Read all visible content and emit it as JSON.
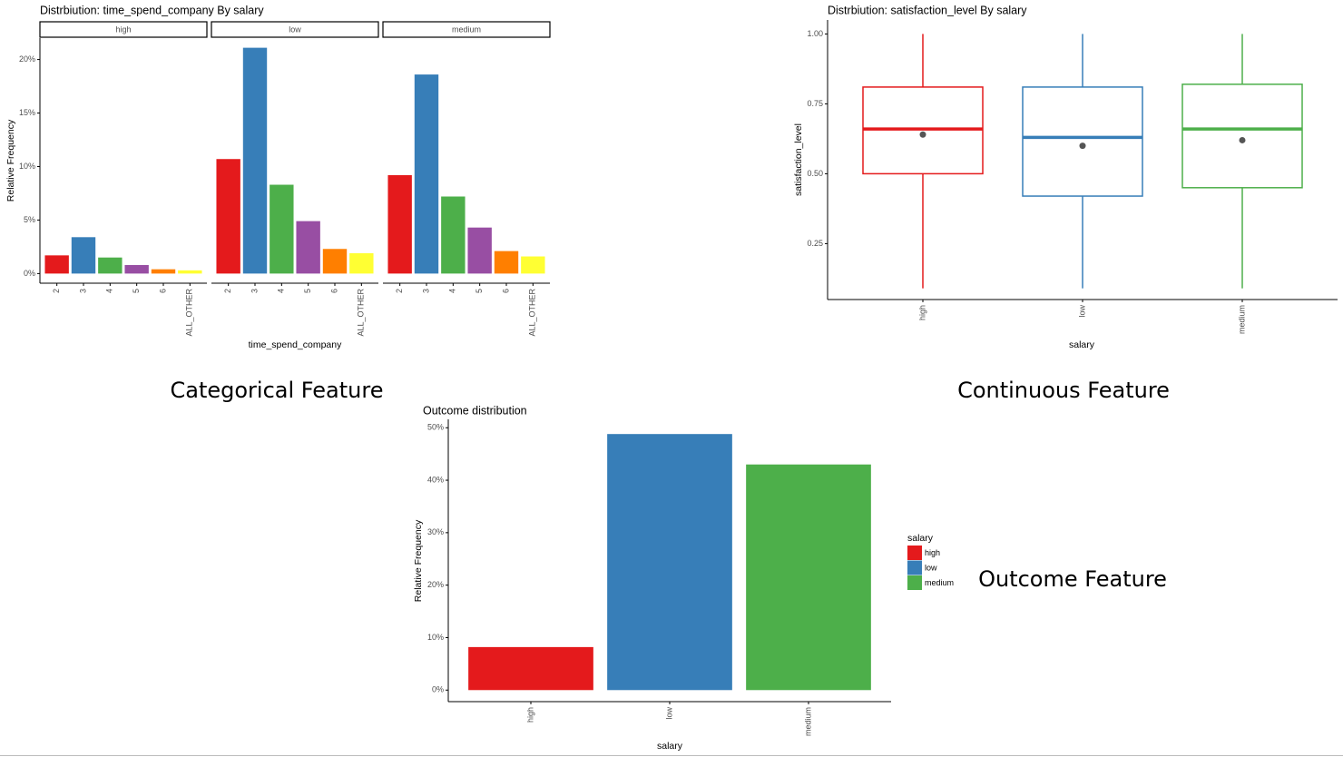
{
  "chart_data": [
    {
      "type": "faceted_bar",
      "title": "Distrbiution: time_spend_company By salary",
      "caption": "Categorical Feature",
      "x_label": "time_spend_company",
      "y_label": "Relative Frequency",
      "categories": [
        "2",
        "3",
        "4",
        "5",
        "6",
        "ALL_OTHER"
      ],
      "colors": [
        "#e41a1c",
        "#377eb8",
        "#4daf4a",
        "#984ea3",
        "#ff7f00",
        "#ffff33"
      ],
      "facets": [
        {
          "name": "high",
          "values": [
            1.7,
            3.4,
            1.5,
            0.8,
            0.4,
            0.3
          ]
        },
        {
          "name": "low",
          "values": [
            10.7,
            21.1,
            8.3,
            4.9,
            2.3,
            1.9
          ]
        },
        {
          "name": "medium",
          "values": [
            9.2,
            18.6,
            7.2,
            4.3,
            2.1,
            1.6
          ]
        }
      ],
      "ylim": [
        -0.9,
        22
      ],
      "yticks": [
        {
          "value": 0,
          "label": "0%"
        },
        {
          "value": 5,
          "label": "5%"
        },
        {
          "value": 10,
          "label": "10%"
        },
        {
          "value": 15,
          "label": "15%"
        },
        {
          "value": 20,
          "label": "20%"
        }
      ]
    },
    {
      "type": "box",
      "title": "Distrbiution: satisfaction_level By salary",
      "caption": "Continuous Feature",
      "x_label": "salary",
      "y_label": "satisfaction_level",
      "categories": [
        "high",
        "low",
        "medium"
      ],
      "boxes": [
        {
          "color": "#e41a1c",
          "whisker_low": 0.09,
          "q1": 0.5,
          "median": 0.66,
          "q3": 0.81,
          "whisker_high": 1.0,
          "mean": 0.64
        },
        {
          "color": "#377eb8",
          "whisker_low": 0.09,
          "q1": 0.42,
          "median": 0.63,
          "q3": 0.81,
          "whisker_high": 1.0,
          "mean": 0.6
        },
        {
          "color": "#4daf4a",
          "whisker_low": 0.09,
          "q1": 0.45,
          "median": 0.66,
          "q3": 0.82,
          "whisker_high": 1.0,
          "mean": 0.62
        }
      ],
      "ylim": [
        0.05,
        1.05
      ],
      "yticks": [
        0.25,
        {
          "value": 0.5,
          "label": "0.50"
        },
        0.75,
        {
          "value": 1,
          "label": "1.00"
        }
      ]
    },
    {
      "type": "bar",
      "title": "Outcome distribution",
      "caption": "Outcome Feature",
      "x_label": "salary",
      "y_label": "Relative Frequency",
      "legend_title": "salary",
      "categories": [
        "high",
        "low",
        "medium"
      ],
      "values": [
        8.2,
        48.8,
        43.0
      ],
      "colors": [
        "#e41a1c",
        "#377eb8",
        "#4daf4a"
      ],
      "ylim": [
        -2.2,
        51.6
      ],
      "yticks": [
        {
          "value": 0,
          "label": "0%"
        },
        {
          "value": 10,
          "label": "10%"
        },
        {
          "value": 20,
          "label": "20%"
        },
        {
          "value": 30,
          "label": "30%"
        },
        {
          "value": 40,
          "label": "40%"
        },
        {
          "value": 50,
          "label": "50%"
        }
      ]
    }
  ]
}
